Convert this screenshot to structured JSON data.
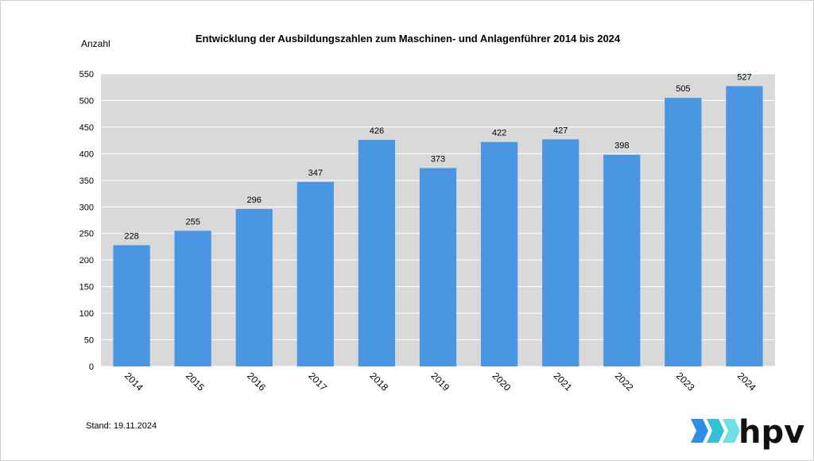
{
  "chart_data": {
    "type": "bar",
    "title": "Entwicklung der Ausbildungszahlen zum Maschinen- und Anlagenführer 2014 bis 2024",
    "ylabel": "Anzahl",
    "xlabel": "",
    "categories": [
      "2014",
      "2015",
      "2016",
      "2017",
      "2018",
      "2019",
      "2020",
      "2021",
      "2022",
      "2023",
      "2024"
    ],
    "values": [
      228,
      255,
      296,
      347,
      426,
      373,
      422,
      427,
      398,
      505,
      527
    ],
    "ylim": [
      0,
      550
    ],
    "yticks": [
      0,
      50,
      100,
      150,
      200,
      250,
      300,
      350,
      400,
      450,
      500,
      550
    ],
    "grid": true,
    "bar_color": "#4a96e2",
    "plot_background": "#d9d9d9"
  },
  "footer": {
    "stand": "Stand: 19.11.2024"
  },
  "logo": {
    "text": "hpv",
    "colors": [
      "#2f8fe8",
      "#33c2d8",
      "#6fe0e8"
    ]
  }
}
